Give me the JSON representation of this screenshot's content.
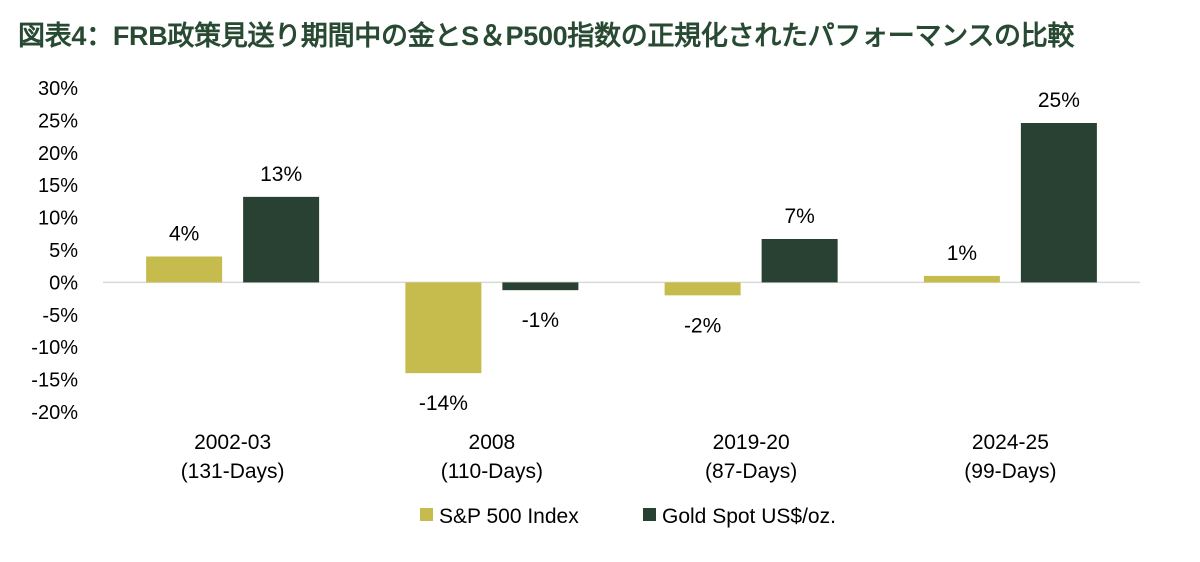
{
  "chart_data": {
    "type": "bar",
    "title": "図表4：FRB政策見送り期間中の金とS＆P500指数の正規化されたパフォーマンスの比較",
    "categories": [
      [
        "2002-03",
        "(131-Days)"
      ],
      [
        "2008",
        "(110-Days)"
      ],
      [
        "2019-20",
        "(87-Days)"
      ],
      [
        "2024-25",
        "(99-Days)"
      ]
    ],
    "series": [
      {
        "name": "S&P 500 Index",
        "color": "#c5bc4d",
        "values": [
          4,
          -14,
          -2,
          1
        ],
        "labels": [
          "4%",
          "-14%",
          "-2%",
          "1%"
        ]
      },
      {
        "name": "Gold Spot US$/oz.",
        "color": "#284133",
        "values": [
          13.2,
          -1.2,
          6.7,
          24.6
        ],
        "labels": [
          "13%",
          "-1%",
          "7%",
          "25%"
        ]
      }
    ],
    "yticks": [
      "30%",
      "25%",
      "20%",
      "15%",
      "10%",
      "5%",
      "0%",
      "-5%",
      "-10%",
      "-15%",
      "-20%"
    ],
    "ylim": [
      -20,
      30
    ],
    "grid": false,
    "legend": "bottom",
    "xlabel": "",
    "ylabel": ""
  }
}
